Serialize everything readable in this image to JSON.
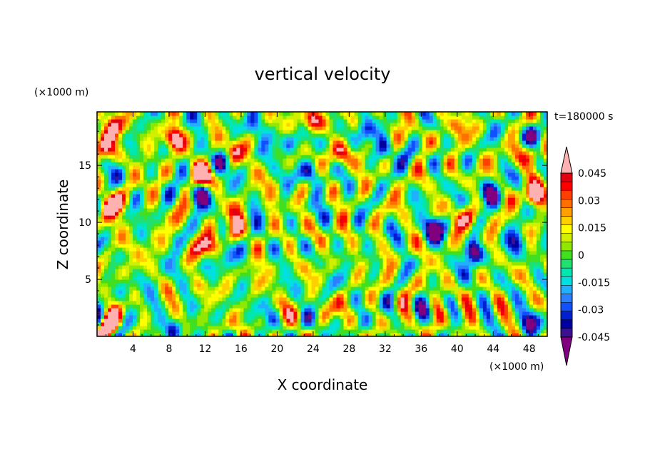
{
  "chart_data": {
    "type": "heatmap",
    "title": "vertical velocity",
    "time_label": "t=180000 s",
    "xlabel": "X coordinate",
    "ylabel": "Z coordinate",
    "x_unit": "(×1000 m)",
    "y_unit": "(×1000 m)",
    "xlim": [
      0,
      50
    ],
    "ylim": [
      0,
      19.7
    ],
    "x_ticks": [
      4,
      8,
      12,
      16,
      20,
      24,
      28,
      32,
      36,
      40,
      44,
      48
    ],
    "y_ticks": [
      5,
      10,
      15
    ],
    "colorbar": {
      "labels": [
        "0.045",
        "0.03",
        "0.015",
        "0",
        "-0.015",
        "-0.03",
        "-0.045"
      ],
      "label_values": [
        0.045,
        0.03,
        0.015,
        0,
        -0.015,
        -0.03,
        -0.045
      ],
      "levels": [
        -0.05,
        -0.045,
        -0.04,
        -0.035,
        -0.03,
        -0.025,
        -0.02,
        -0.015,
        -0.01,
        -0.005,
        0,
        0.005,
        0.01,
        0.015,
        0.02,
        0.025,
        0.03,
        0.035,
        0.04,
        0.045,
        0.05
      ],
      "colors": [
        "#800080",
        "#3c1090",
        "#0000a0",
        "#0020d0",
        "#1050ff",
        "#2a80ff",
        "#20b0ff",
        "#00e0e0",
        "#00e8b0",
        "#20e070",
        "#40e020",
        "#90e800",
        "#d0f000",
        "#ffff00",
        "#ffd000",
        "#ffa000",
        "#ff7000",
        "#ff4000",
        "#ff0000",
        "#e00010",
        "#ffb0b0"
      ],
      "extends": "both"
    },
    "features": [
      {
        "x": 1.5,
        "z": 1.2,
        "w": 0.06
      },
      {
        "x": 1.5,
        "z": 11.5,
        "w": 0.055
      },
      {
        "x": 1.8,
        "z": 18.4,
        "w": 0.04
      },
      {
        "x": 1.0,
        "z": 16.5,
        "w": 0.05
      },
      {
        "x": 8.5,
        "z": 0.8,
        "w": -0.05
      },
      {
        "x": 8.5,
        "z": 17.5,
        "w": 0.055
      },
      {
        "x": 11.8,
        "z": 14.2,
        "w": 0.06
      },
      {
        "x": 12.6,
        "z": 7.9,
        "w": 0.055
      },
      {
        "x": 11.7,
        "z": 12.5,
        "w": -0.04
      },
      {
        "x": 13.8,
        "z": 15.2,
        "w": -0.045
      },
      {
        "x": 14.5,
        "z": 7.3,
        "w": -0.05
      },
      {
        "x": 15.2,
        "z": 16.1,
        "w": 0.05
      },
      {
        "x": 15.2,
        "z": 9.3,
        "w": 0.05
      },
      {
        "x": 17.3,
        "z": 18.5,
        "w": -0.04
      },
      {
        "x": 21.0,
        "z": 17.0,
        "w": -0.04
      },
      {
        "x": 23.7,
        "z": 14.5,
        "w": -0.045
      },
      {
        "x": 23.9,
        "z": 18.9,
        "w": 0.055
      },
      {
        "x": 27.3,
        "z": 16.0,
        "w": 0.04
      },
      {
        "x": 29.8,
        "z": 18.0,
        "w": -0.04
      },
      {
        "x": 32.0,
        "z": 16.5,
        "w": -0.035
      },
      {
        "x": 37.2,
        "z": 9.6,
        "w": -0.055
      },
      {
        "x": 40.0,
        "z": 18.5,
        "w": 0.04
      },
      {
        "x": 41.4,
        "z": 10.5,
        "w": 0.045
      },
      {
        "x": 41.8,
        "z": 7.4,
        "w": -0.06
      },
      {
        "x": 43.5,
        "z": 12.6,
        "w": -0.055
      },
      {
        "x": 46.8,
        "z": 8.5,
        "w": -0.035
      },
      {
        "x": 48.5,
        "z": 12.4,
        "w": 0.06
      },
      {
        "x": 48.2,
        "z": 16.0,
        "w": 0.05
      },
      {
        "x": 48.3,
        "z": 17.8,
        "w": -0.05
      },
      {
        "x": 48.0,
        "z": 1.2,
        "w": -0.04
      },
      {
        "x": 5.0,
        "z": 4.5,
        "w": -0.02
      },
      {
        "x": 3.0,
        "z": 8.0,
        "w": 0.02
      }
    ]
  }
}
